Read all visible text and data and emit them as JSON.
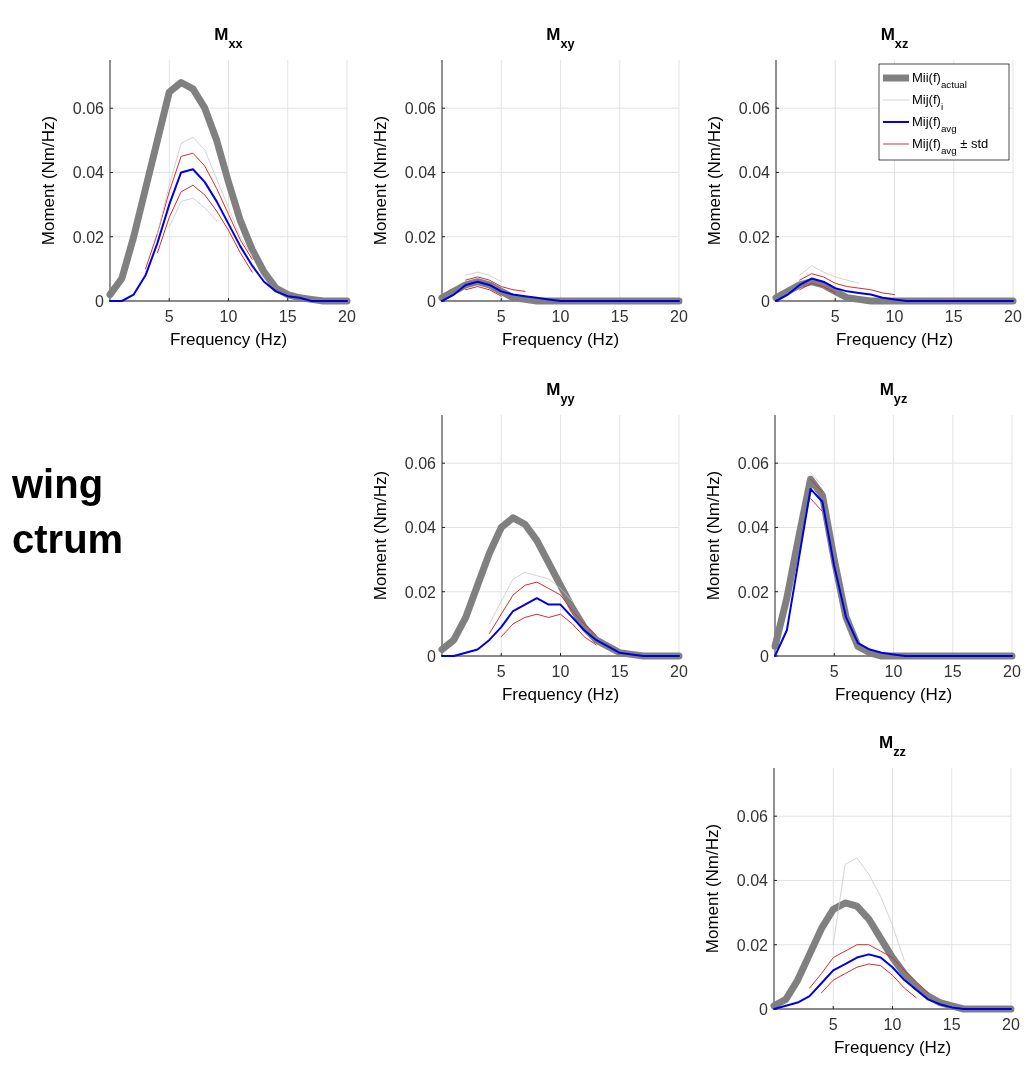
{
  "chart_data": [
    {
      "type": "line",
      "title": "M$_{xx}$",
      "xlabel": "Frequency (Hz)",
      "ylabel": "Moment (Nm/Hz)",
      "annotations": [
        "wing",
        "ctrum"
      ],
      "x": [
        0,
        1,
        2,
        3,
        4,
        5,
        6,
        7,
        8,
        9,
        10,
        11,
        12,
        13,
        14,
        15,
        16,
        17,
        18,
        19,
        20
      ],
      "xlim": [
        0,
        20
      ],
      "ylim": [
        0,
        0.075
      ],
      "xticks": [
        5,
        10,
        15,
        20
      ],
      "yticks": [
        0,
        0.02,
        0.04,
        0.06
      ],
      "grid": true,
      "series": [
        {
          "color": "#808080",
          "values": [
            0.002,
            0.007,
            0.02,
            0.035,
            0.05,
            0.065,
            0.068,
            0.066,
            0.06,
            0.05,
            0.037,
            0.025,
            0.016,
            0.009,
            0.004,
            0.002,
            0.001,
            0.0005,
            0,
            0,
            0
          ]
        },
        {
          "color": "#c8c8c8",
          "values": [
            null,
            null,
            null,
            null,
            0.021,
            0.036,
            0.049,
            0.051,
            0.047,
            0.038,
            0.029,
            0.02,
            0.014,
            null,
            null,
            null,
            null,
            null,
            null,
            null,
            null
          ]
        },
        {
          "color": "#0000e0",
          "values": [
            0,
            0,
            0.002,
            0.008,
            0.018,
            0.03,
            0.04,
            0.041,
            0.037,
            0.031,
            0.024,
            0.017,
            0.011,
            0.006,
            0.003,
            0.0015,
            0.001,
            0,
            0,
            0,
            0
          ]
        },
        {
          "color": "#d03030",
          "values": [
            null,
            null,
            null,
            0.01,
            0.021,
            0.034,
            0.045,
            0.046,
            0.042,
            0.035,
            0.027,
            0.019,
            0.013,
            null,
            null,
            null,
            null,
            null,
            null,
            null,
            null
          ]
        },
        {
          "color": "#d03030",
          "values": [
            null,
            null,
            null,
            null,
            0.015,
            0.026,
            0.034,
            0.036,
            0.033,
            0.028,
            0.022,
            0.015,
            0.009,
            null,
            null,
            null,
            null,
            null,
            null,
            null,
            null
          ]
        },
        {
          "color": "#c8c8c8",
          "values": [
            null,
            null,
            null,
            null,
            null,
            0.023,
            0.031,
            0.032,
            0.029,
            0.025,
            null,
            null,
            null,
            null,
            null,
            null,
            null,
            null,
            null,
            null,
            null
          ]
        }
      ]
    },
    {
      "type": "line",
      "title": "M$_{xy}$",
      "xlabel": "Frequency (Hz)",
      "ylabel": "Moment (Nm/Hz)",
      "x": [
        0,
        1,
        2,
        3,
        4,
        5,
        6,
        7,
        8,
        9,
        10,
        11,
        12,
        13,
        14,
        15,
        16,
        17,
        18,
        19,
        20
      ],
      "xlim": [
        0,
        20
      ],
      "ylim": [
        0,
        0.075
      ],
      "xticks": [
        5,
        10,
        15,
        20
      ],
      "yticks": [
        0,
        0.02,
        0.04,
        0.06
      ],
      "grid": true,
      "series": [
        {
          "color": "#808080",
          "values": [
            0.001,
            0.003,
            0.005,
            0.006,
            0.005,
            0.003,
            0.001,
            0.0005,
            0,
            0,
            0,
            0,
            0,
            0,
            0,
            0,
            0,
            0,
            0,
            0,
            0
          ]
        },
        {
          "color": "#c8c8c8",
          "values": [
            null,
            null,
            0.008,
            0.009,
            0.008,
            0.006,
            null,
            null,
            null,
            null,
            null,
            null,
            null,
            null,
            null,
            null,
            null,
            null,
            null,
            null,
            null
          ]
        },
        {
          "color": "#0000e0",
          "values": [
            0,
            0.002,
            0.005,
            0.006,
            0.005,
            0.003,
            0.002,
            0.0015,
            0.001,
            0.0005,
            0,
            0,
            0,
            0,
            0,
            0,
            0,
            0,
            0,
            0,
            0
          ]
        },
        {
          "color": "#d03030",
          "values": [
            null,
            null,
            0.0065,
            0.0075,
            0.0065,
            0.0045,
            0.0035,
            0.003,
            null,
            null,
            null,
            null,
            null,
            null,
            null,
            null,
            null,
            null,
            null,
            null,
            null
          ]
        },
        {
          "color": "#d03030",
          "values": [
            null,
            null,
            0.0035,
            0.0045,
            0.0035,
            0.0015,
            null,
            null,
            null,
            null,
            null,
            null,
            null,
            null,
            null,
            null,
            null,
            null,
            null,
            null,
            null
          ]
        }
      ]
    },
    {
      "type": "line",
      "title": "M$_{xz}$",
      "xlabel": "Frequency (Hz)",
      "ylabel": "Moment (Nm/Hz)",
      "legend": "top right",
      "x": [
        0,
        1,
        2,
        3,
        4,
        5,
        6,
        7,
        8,
        9,
        10,
        11,
        12,
        13,
        14,
        15,
        16,
        17,
        18,
        19,
        20
      ],
      "xlim": [
        0,
        20
      ],
      "ylim": [
        0,
        0.075
      ],
      "xticks": [
        5,
        10,
        15,
        20
      ],
      "yticks": [
        0,
        0.02,
        0.04,
        0.06
      ],
      "grid": true,
      "series": [
        {
          "name": "Mii(f)$_{actual}$",
          "color": "#808080",
          "values": [
            0.001,
            0.003,
            0.005,
            0.006,
            0.005,
            0.003,
            0.001,
            0.0005,
            0,
            0,
            0,
            0,
            0,
            0,
            0,
            0,
            0,
            0,
            0,
            0,
            0
          ]
        },
        {
          "name": "Mij(f)$_{i}$",
          "color": "#c8c8c8",
          "values": [
            null,
            null,
            0.008,
            0.011,
            0.009,
            0.0075,
            0.0065,
            0.0055,
            null,
            null,
            null,
            null,
            null,
            null,
            null,
            null,
            null,
            null,
            null,
            null,
            null
          ]
        },
        {
          "name": "Mij(f)$_{avg}$",
          "color": "#0000e0",
          "values": [
            0,
            0.002,
            0.005,
            0.007,
            0.006,
            0.004,
            0.003,
            0.0025,
            0.002,
            0.001,
            0.0005,
            0,
            0,
            0,
            0,
            0,
            0,
            0,
            0,
            0,
            0
          ]
        },
        {
          "name": "Mij(f)$_{avg}$ ± std",
          "color": "#d03030",
          "values": [
            null,
            null,
            0.0065,
            0.0085,
            0.0075,
            0.0055,
            0.0045,
            0.004,
            0.0035,
            0.0025,
            0.002,
            null,
            null,
            null,
            null,
            null,
            null,
            null,
            null,
            null,
            null
          ]
        },
        {
          "color": "#d03030",
          "values": [
            null,
            null,
            0.0035,
            0.0055,
            0.0045,
            0.0025,
            null,
            null,
            null,
            null,
            null,
            null,
            null,
            null,
            null,
            null,
            null,
            null,
            null,
            null,
            null
          ]
        }
      ]
    },
    {
      "type": "line",
      "title": "M$_{yy}$",
      "xlabel": "Frequency (Hz)",
      "ylabel": "Moment (Nm/Hz)",
      "x": [
        0,
        1,
        2,
        3,
        4,
        5,
        6,
        7,
        8,
        9,
        10,
        11,
        12,
        13,
        14,
        15,
        16,
        17,
        18,
        19,
        20
      ],
      "xlim": [
        0,
        20
      ],
      "ylim": [
        0,
        0.075
      ],
      "xticks": [
        5,
        10,
        15,
        20
      ],
      "yticks": [
        0,
        0.02,
        0.04,
        0.06
      ],
      "grid": true,
      "series": [
        {
          "color": "#808080",
          "values": [
            0.002,
            0.005,
            0.012,
            0.022,
            0.032,
            0.04,
            0.043,
            0.041,
            0.036,
            0.029,
            0.022,
            0.015,
            0.009,
            0.005,
            0.003,
            0.001,
            0.0005,
            0,
            0,
            0,
            0
          ]
        },
        {
          "color": "#c8c8c8",
          "values": [
            null,
            null,
            null,
            null,
            0.01,
            0.017,
            0.024,
            0.026,
            0.025,
            0.024,
            0.021,
            0.017,
            null,
            null,
            null,
            null,
            null,
            null,
            null,
            null,
            null
          ]
        },
        {
          "color": "#0000e0",
          "values": [
            0,
            0,
            0.001,
            0.002,
            0.005,
            0.009,
            0.014,
            0.016,
            0.018,
            0.016,
            0.016,
            0.012,
            0.008,
            0.005,
            0.003,
            0.001,
            0.0005,
            0,
            0,
            0,
            0
          ]
        },
        {
          "color": "#d03030",
          "values": [
            null,
            null,
            null,
            null,
            0.007,
            0.013,
            0.019,
            0.022,
            0.023,
            0.021,
            0.019,
            0.014,
            0.01,
            0.0065,
            null,
            null,
            null,
            null,
            null,
            null,
            null
          ]
        },
        {
          "color": "#d03030",
          "values": [
            null,
            null,
            null,
            null,
            null,
            0.006,
            0.01,
            0.012,
            0.013,
            0.012,
            0.013,
            0.01,
            0.006,
            0.0035,
            null,
            null,
            null,
            null,
            null,
            null,
            null
          ]
        }
      ]
    },
    {
      "type": "line",
      "title": "M$_{yz}$",
      "xlabel": "Frequency (Hz)",
      "ylabel": "Moment (Nm/Hz)",
      "x": [
        0,
        1,
        2,
        3,
        4,
        5,
        6,
        7,
        8,
        9,
        10,
        11,
        12,
        13,
        14,
        15,
        16,
        17,
        18,
        19,
        20
      ],
      "xlim": [
        0,
        20
      ],
      "ylim": [
        0,
        0.075
      ],
      "xticks": [
        5,
        10,
        15,
        20
      ],
      "yticks": [
        0,
        0.02,
        0.04,
        0.06
      ],
      "grid": true,
      "series": [
        {
          "color": "#808080",
          "values": [
            0.003,
            0.018,
            0.037,
            0.055,
            0.05,
            0.03,
            0.012,
            0.003,
            0.001,
            0,
            0,
            0,
            0,
            0,
            0,
            0,
            0,
            0,
            0,
            0,
            0
          ]
        },
        {
          "color": "#c8c8c8",
          "values": [
            null,
            null,
            null,
            0.057,
            0.053,
            null,
            null,
            null,
            null,
            null,
            null,
            null,
            null,
            null,
            null,
            null,
            null,
            null,
            null,
            null,
            null
          ]
        },
        {
          "color": "#0000e0",
          "values": [
            0,
            0.008,
            0.03,
            0.052,
            0.048,
            0.028,
            0.012,
            0.004,
            0.002,
            0.001,
            0.0005,
            0,
            0,
            0,
            0,
            0,
            0,
            0,
            0,
            0,
            0
          ]
        },
        {
          "color": "#d03030",
          "values": [
            null,
            null,
            null,
            0.055,
            0.051,
            null,
            null,
            null,
            null,
            null,
            null,
            null,
            null,
            null,
            null,
            null,
            null,
            null,
            null,
            null,
            null
          ]
        },
        {
          "color": "#d03030",
          "values": [
            null,
            null,
            null,
            0.049,
            0.045,
            null,
            null,
            null,
            null,
            null,
            null,
            null,
            null,
            null,
            null,
            null,
            null,
            null,
            null,
            null,
            null
          ]
        }
      ]
    },
    {
      "type": "line",
      "title": "M$_{zz}$",
      "xlabel": "Frequency (Hz)",
      "ylabel": "Moment (Nm/Hz)",
      "x": [
        0,
        1,
        2,
        3,
        4,
        5,
        6,
        7,
        8,
        9,
        10,
        11,
        12,
        13,
        14,
        15,
        16,
        17,
        18,
        19,
        20
      ],
      "xlim": [
        0,
        20
      ],
      "ylim": [
        0,
        0.075
      ],
      "xticks": [
        5,
        10,
        15,
        20
      ],
      "yticks": [
        0,
        0.02,
        0.04,
        0.06
      ],
      "grid": true,
      "series": [
        {
          "color": "#808080",
          "values": [
            0.001,
            0.003,
            0.009,
            0.017,
            0.025,
            0.031,
            0.033,
            0.032,
            0.028,
            0.022,
            0.016,
            0.011,
            0.007,
            0.004,
            0.002,
            0.001,
            0,
            0,
            0,
            0,
            0
          ]
        },
        {
          "color": "#c8c8c8",
          "values": [
            null,
            null,
            null,
            null,
            null,
            0.02,
            0.045,
            0.047,
            0.042,
            0.035,
            0.026,
            0.015,
            null,
            null,
            null,
            null,
            null,
            null,
            null,
            null,
            null
          ]
        },
        {
          "color": "#0000e0",
          "values": [
            0,
            0.001,
            0.002,
            0.004,
            0.008,
            0.012,
            0.014,
            0.016,
            0.017,
            0.016,
            0.013,
            0.009,
            0.006,
            0.003,
            0.0015,
            0.0005,
            0,
            0,
            0,
            0,
            0
          ]
        },
        {
          "color": "#d03030",
          "values": [
            null,
            null,
            null,
            0.0065,
            0.011,
            0.016,
            0.018,
            0.02,
            0.02,
            0.018,
            0.016,
            0.012,
            0.0085,
            0.005,
            null,
            null,
            null,
            null,
            null,
            null,
            null
          ]
        },
        {
          "color": "#d03030",
          "values": [
            null,
            null,
            null,
            null,
            0.005,
            0.009,
            0.011,
            0.013,
            0.014,
            0.0135,
            0.0105,
            0.0065,
            0.0035,
            null,
            null,
            null,
            null,
            null,
            null,
            null,
            null
          ]
        }
      ]
    }
  ]
}
